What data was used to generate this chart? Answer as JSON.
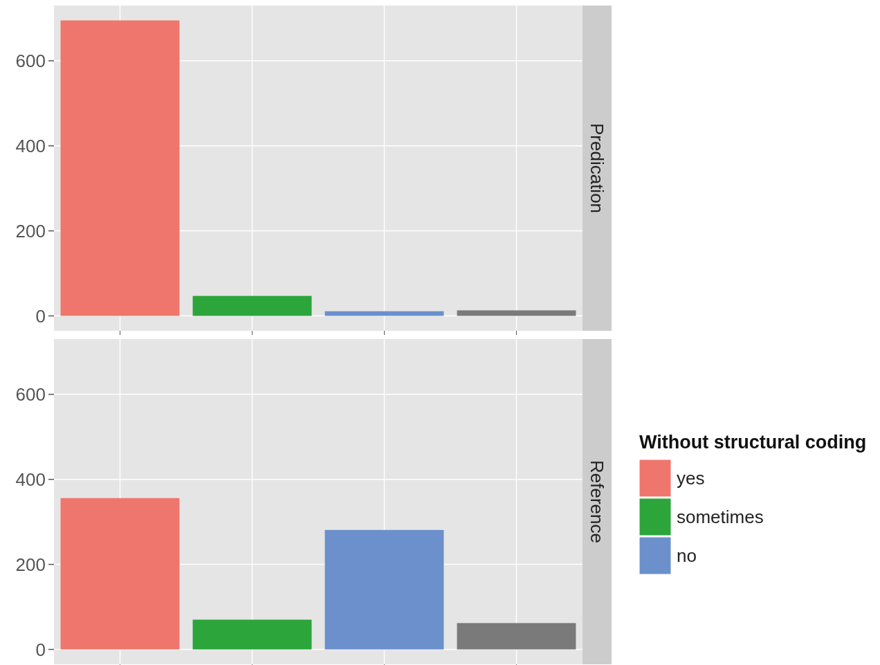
{
  "chart_data": [
    {
      "type": "bar",
      "title": "Predication",
      "categories": [
        null,
        null,
        null,
        null
      ],
      "stacked": true,
      "ylim": [
        -35,
        730
      ],
      "yticks": [
        0,
        200,
        400,
        600
      ],
      "grid": true,
      "legend": false,
      "series": [
        {
          "color": "#ef766d",
          "values": [
            695,
            null,
            null,
            null
          ]
        },
        {
          "color": "#2ca53a",
          "values": [
            null,
            47,
            null,
            null
          ]
        },
        {
          "color": "#6b90cb",
          "values": [
            null,
            null,
            11,
            null
          ]
        },
        {
          "color": "#7a7a7a",
          "values": [
            null,
            null,
            null,
            13
          ]
        }
      ]
    },
    {
      "type": "bar",
      "title": "Reference",
      "categories": [
        null,
        null,
        null,
        null
      ],
      "stacked": true,
      "ylim": [
        -35,
        730
      ],
      "yticks": [
        0,
        200,
        400,
        600
      ],
      "grid": true,
      "legend": "right",
      "legend_title": "Without structural coding",
      "series": [
        {
          "name": "yes",
          "color": "#ef766d",
          "values": [
            356,
            null,
            null,
            null
          ]
        },
        {
          "name": "sometimes",
          "color": "#2ca53a",
          "values": [
            null,
            70,
            null,
            null
          ]
        },
        {
          "name": "no",
          "color": "#6b90cb",
          "values": [
            null,
            null,
            281,
            null
          ]
        },
        {
          "color": "#7a7a7a",
          "values": [
            null,
            null,
            null,
            62
          ]
        }
      ]
    }
  ]
}
